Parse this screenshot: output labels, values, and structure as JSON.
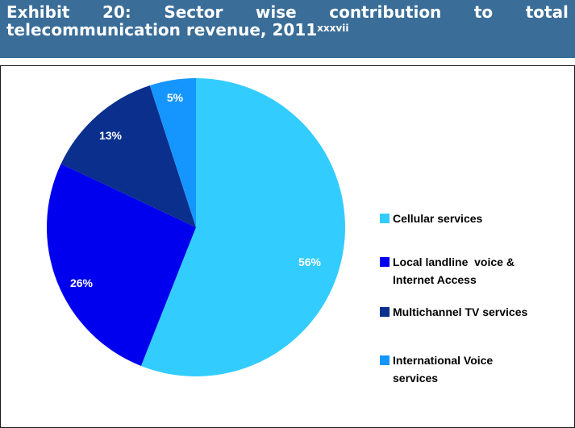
{
  "header": {
    "words": [
      "Exhibit",
      "20:",
      "Sector",
      "wise",
      "contribution",
      "to",
      "total"
    ],
    "line2": "telecommunication revenue, 2011",
    "superscript": "xxxvii"
  },
  "colors": {
    "header_bg": "#3a6d98",
    "cellular": "#33ccff",
    "local": "#0000ee",
    "multichannel": "#0a2f8c",
    "international": "#1596ff"
  },
  "chart_data": {
    "type": "pie",
    "title": "",
    "slices": [
      {
        "label": "Cellular services",
        "value": 56,
        "display": "56%",
        "color": "#33ccff"
      },
      {
        "label": "Local landline voice & Internet Access",
        "value": 26,
        "display": "26%",
        "color": "#0000ee"
      },
      {
        "label": "Multichannel TV services",
        "value": 13,
        "display": "13%",
        "color": "#0a2f8c"
      },
      {
        "label": "International Voice services",
        "value": 5,
        "display": "5%",
        "color": "#1596ff"
      }
    ],
    "legend_position": "right",
    "legend": [
      {
        "lines": [
          "Cellular services"
        ]
      },
      {
        "lines": [
          "Local landline  voice &",
          "Internet Access"
        ]
      },
      {
        "lines": [
          "Multichannel TV services"
        ]
      },
      {
        "lines": [
          "International Voice",
          "services"
        ]
      }
    ]
  }
}
